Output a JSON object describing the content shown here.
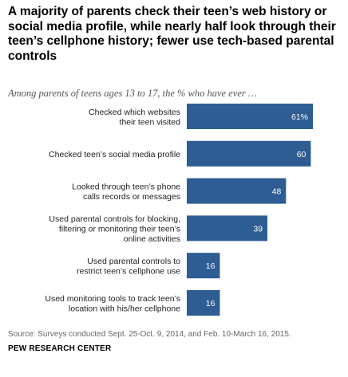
{
  "chart_data": {
    "type": "bar",
    "orientation": "horizontal",
    "title": "A majority of parents check their teen’s web history or social media profile, while nearly half look through their teen’s cellphone history; fewer use tech-based parental controls",
    "subtitle": "Among parents of teens ages 13 to 17, the % who have ever …",
    "categories": [
      [
        "Checked which websites",
        "their teen visited"
      ],
      [
        "Checked teen’s social media profile"
      ],
      [
        "Looked through teen’s phone",
        "calls records or messages"
      ],
      [
        "Used parental controls for blocking,",
        "filtering or monitoring their teen’s",
        "online activities"
      ],
      [
        "Used parental controls to",
        "restrict teen’s cellphone use"
      ],
      [
        "Used monitoring tools to track teen’s",
        "location with his/her cellphone"
      ]
    ],
    "values": [
      61,
      60,
      48,
      39,
      16,
      16
    ],
    "value_labels": [
      "61%",
      "60",
      "48",
      "39",
      "16",
      "16"
    ],
    "xlim": [
      0,
      100
    ],
    "grid": false,
    "legend": "none",
    "bar_color": "#2e5d94",
    "source": "Source: Surveys conducted Sept. 25-Oct. 9, 2014, and Feb. 10-March 16, 2015.",
    "organization": "PEW RESEARCH CENTER"
  }
}
